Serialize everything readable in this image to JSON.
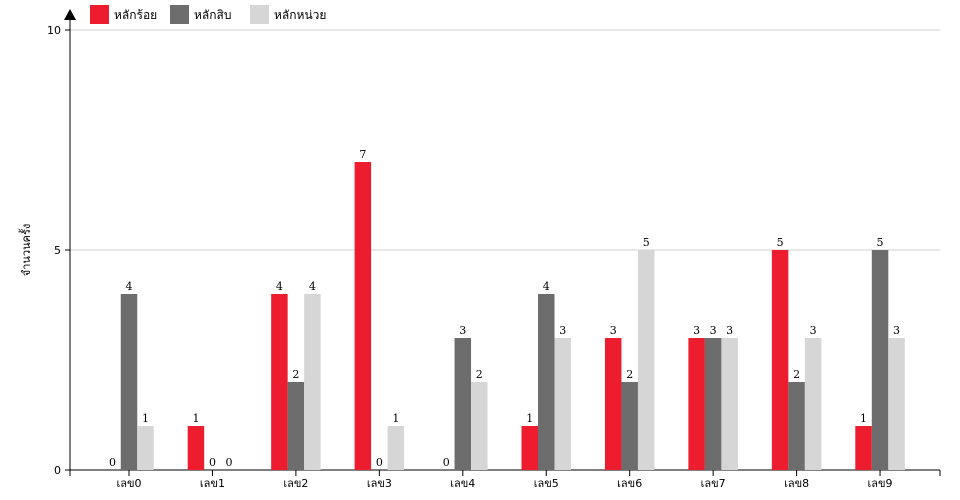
{
  "chart_data": {
    "type": "bar",
    "title": "",
    "xlabel": "",
    "ylabel": "จำนวนครั้ง",
    "ylim": [
      0,
      10
    ],
    "yticks": [
      0,
      5,
      10
    ],
    "grid": true,
    "legend_position": "top-left",
    "categories": [
      "เลข0",
      "เลข1",
      "เลข2",
      "เลข3",
      "เลข4",
      "เลข5",
      "เลข6",
      "เลข7",
      "เลข8",
      "เลข9"
    ],
    "series": [
      {
        "name": "หลักร้อย",
        "color": "#ed1c2e",
        "values": [
          0,
          1,
          4,
          7,
          0,
          1,
          3,
          3,
          5,
          1
        ]
      },
      {
        "name": "หลักสิบ",
        "color": "#6d6d6d",
        "values": [
          4,
          0,
          2,
          0,
          3,
          4,
          2,
          3,
          2,
          5
        ]
      },
      {
        "name": "หลักหน่วย",
        "color": "#d6d6d6",
        "values": [
          1,
          0,
          4,
          1,
          2,
          3,
          5,
          3,
          3,
          3
        ]
      }
    ]
  }
}
